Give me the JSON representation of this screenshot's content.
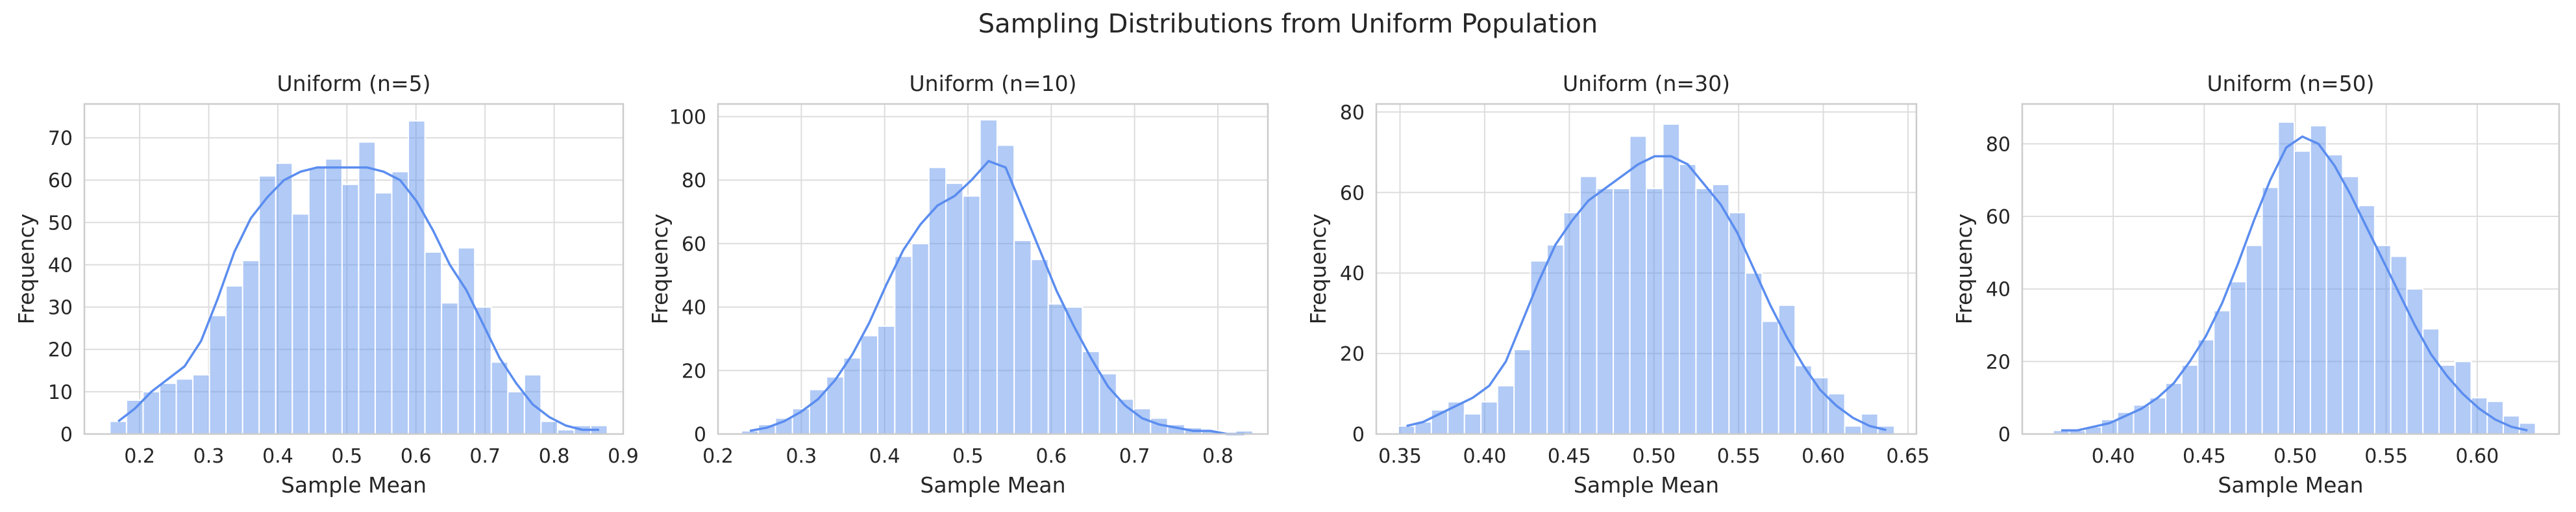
{
  "figure": {
    "title": "Sampling Distributions from Uniform Population"
  },
  "colors": {
    "bar": "#6495ED",
    "bar_opacity": 0.5,
    "kde_line": "#5b8def",
    "grid": "#dddddd",
    "frame": "#cccccc",
    "text": "#262626"
  },
  "chart_data": [
    {
      "type": "bar",
      "title": "Uniform (n=5)",
      "xlabel": "Sample Mean",
      "ylabel": "Frequency",
      "grid": true,
      "xlim": [
        0.12,
        0.9
      ],
      "ylim": [
        0,
        78
      ],
      "xticks": [
        0.2,
        0.3,
        0.4,
        0.5,
        0.6,
        0.7,
        0.8,
        0.9
      ],
      "xtick_labels": [
        "0.2",
        "0.3",
        "0.4",
        "0.5",
        "0.6",
        "0.7",
        "0.8",
        "0.9"
      ],
      "yticks": [
        0,
        10,
        20,
        30,
        40,
        50,
        60,
        70
      ],
      "ytick_labels": [
        "0",
        "10",
        "20",
        "30",
        "40",
        "50",
        "60",
        "70"
      ],
      "bin_start": 0.157,
      "bin_end": 0.877,
      "values": [
        3,
        8,
        10,
        12,
        13,
        14,
        28,
        35,
        41,
        61,
        64,
        52,
        63,
        65,
        59,
        69,
        57,
        62,
        74,
        43,
        31,
        44,
        30,
        17,
        10,
        14,
        3,
        1,
        2,
        2
      ],
      "kde": [
        3,
        6,
        10,
        13,
        16,
        22,
        32,
        43,
        51,
        56,
        60,
        62,
        63,
        63,
        63,
        63,
        62,
        60,
        55,
        48,
        40,
        34,
        26,
        18,
        12,
        7,
        4,
        2,
        1,
        1
      ]
    },
    {
      "type": "bar",
      "title": "Uniform (n=10)",
      "xlabel": "Sample Mean",
      "ylabel": "Frequency",
      "grid": true,
      "xlim": [
        0.2,
        0.86
      ],
      "ylim": [
        0,
        104
      ],
      "xticks": [
        0.2,
        0.3,
        0.4,
        0.5,
        0.6,
        0.7,
        0.8
      ],
      "xtick_labels": [
        "0.2",
        "0.3",
        "0.4",
        "0.5",
        "0.6",
        "0.7",
        "0.8"
      ],
      "yticks": [
        0,
        20,
        40,
        60,
        80,
        100
      ],
      "ytick_labels": [
        "0",
        "20",
        "40",
        "60",
        "80",
        "100"
      ],
      "bin_start": 0.228,
      "bin_end": 0.842,
      "values": [
        1,
        3,
        5,
        8,
        14,
        18,
        24,
        31,
        34,
        56,
        60,
        84,
        79,
        75,
        99,
        91,
        61,
        55,
        41,
        40,
        26,
        19,
        11,
        8,
        5,
        3,
        2,
        1,
        0,
        1
      ],
      "kde": [
        1,
        2,
        4,
        7,
        11,
        17,
        25,
        35,
        47,
        58,
        66,
        72,
        75,
        80,
        86,
        84,
        71,
        58,
        45,
        34,
        24,
        15,
        9,
        5,
        3,
        2,
        1,
        1,
        0,
        0
      ]
    },
    {
      "type": "bar",
      "title": "Uniform (n=30)",
      "xlabel": "Sample Mean",
      "ylabel": "Frequency",
      "grid": true,
      "xlim": [
        0.336,
        0.655
      ],
      "ylim": [
        0,
        82
      ],
      "xticks": [
        0.35,
        0.4,
        0.45,
        0.5,
        0.55,
        0.6,
        0.65
      ],
      "xtick_labels": [
        "0.35",
        "0.40",
        "0.45",
        "0.50",
        "0.55",
        "0.60",
        "0.65"
      ],
      "yticks": [
        0,
        20,
        40,
        60,
        80
      ],
      "ytick_labels": [
        "0",
        "20",
        "40",
        "60",
        "80"
      ],
      "bin_start": 0.349,
      "bin_end": 0.642,
      "values": [
        2,
        3,
        6,
        8,
        5,
        8,
        12,
        21,
        43,
        47,
        55,
        64,
        61,
        61,
        74,
        61,
        77,
        67,
        61,
        62,
        55,
        40,
        28,
        32,
        17,
        14,
        10,
        2,
        5,
        2
      ],
      "kde": [
        2,
        3,
        5,
        7,
        9,
        12,
        18,
        28,
        38,
        47,
        53,
        58,
        61,
        64,
        67,
        69,
        69,
        67,
        62,
        57,
        50,
        41,
        32,
        24,
        17,
        11,
        7,
        4,
        2,
        1
      ]
    },
    {
      "type": "bar",
      "title": "Uniform (n=50)",
      "xlabel": "Sample Mean",
      "ylabel": "Frequency",
      "grid": true,
      "xlim": [
        0.35,
        0.645
      ],
      "ylim": [
        0,
        91
      ],
      "xticks": [
        0.4,
        0.45,
        0.5,
        0.55,
        0.6
      ],
      "xtick_labels": [
        "0.40",
        "0.45",
        "0.50",
        "0.55",
        "0.60"
      ],
      "yticks": [
        0,
        20,
        40,
        60,
        80
      ],
      "ytick_labels": [
        "0",
        "20",
        "40",
        "60",
        "80"
      ],
      "bin_start": 0.367,
      "bin_end": 0.632,
      "values": [
        1,
        1,
        2,
        4,
        6,
        8,
        10,
        14,
        19,
        26,
        34,
        42,
        52,
        68,
        86,
        78,
        85,
        77,
        71,
        63,
        52,
        49,
        40,
        29,
        19,
        20,
        10,
        9,
        5,
        3
      ],
      "kde": [
        1,
        1,
        2,
        3,
        5,
        7,
        10,
        14,
        20,
        27,
        36,
        47,
        59,
        70,
        79,
        82,
        80,
        74,
        66,
        57,
        48,
        39,
        30,
        22,
        16,
        11,
        7,
        4,
        2,
        1
      ]
    }
  ]
}
